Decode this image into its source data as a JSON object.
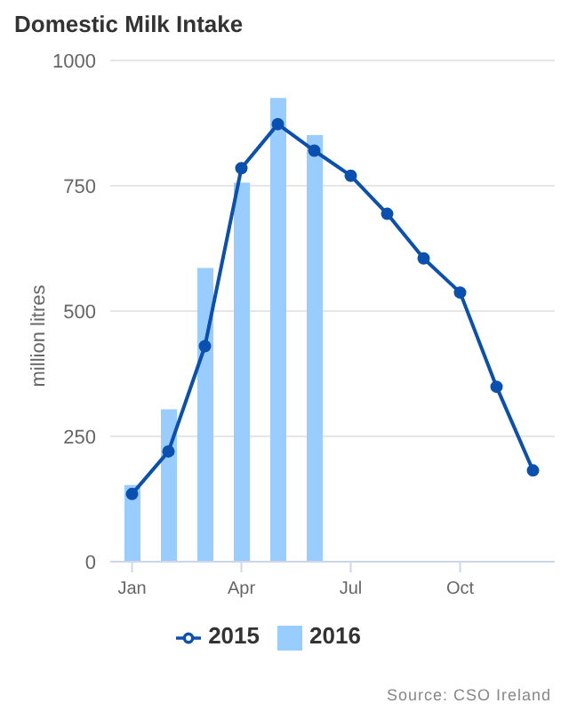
{
  "chart_data": {
    "type": "bar",
    "title": "Domestic Milk Intake",
    "ylabel": "million litres",
    "categories": [
      "Jan",
      null,
      null,
      "Apr",
      null,
      null,
      "Jul",
      null,
      null,
      "Oct",
      null,
      null
    ],
    "series": [
      {
        "name": "2015",
        "type": "line",
        "color": "#0a50b0",
        "values": [
          135,
          220,
          430,
          785,
          873,
          820,
          770,
          694,
          605,
          537,
          349,
          182
        ]
      },
      {
        "name": "2016",
        "color": "#99ccff",
        "values": [
          153,
          304,
          586,
          756,
          925,
          851,
          null,
          null,
          null,
          null,
          null,
          null
        ]
      }
    ],
    "ylim": [
      0,
      1000
    ],
    "yticks": [
      0,
      250,
      500,
      750,
      1000
    ],
    "grid": "y",
    "legend": "bottom",
    "marker": "circle",
    "annotations": [
      "Source: CSO Ireland"
    ]
  }
}
